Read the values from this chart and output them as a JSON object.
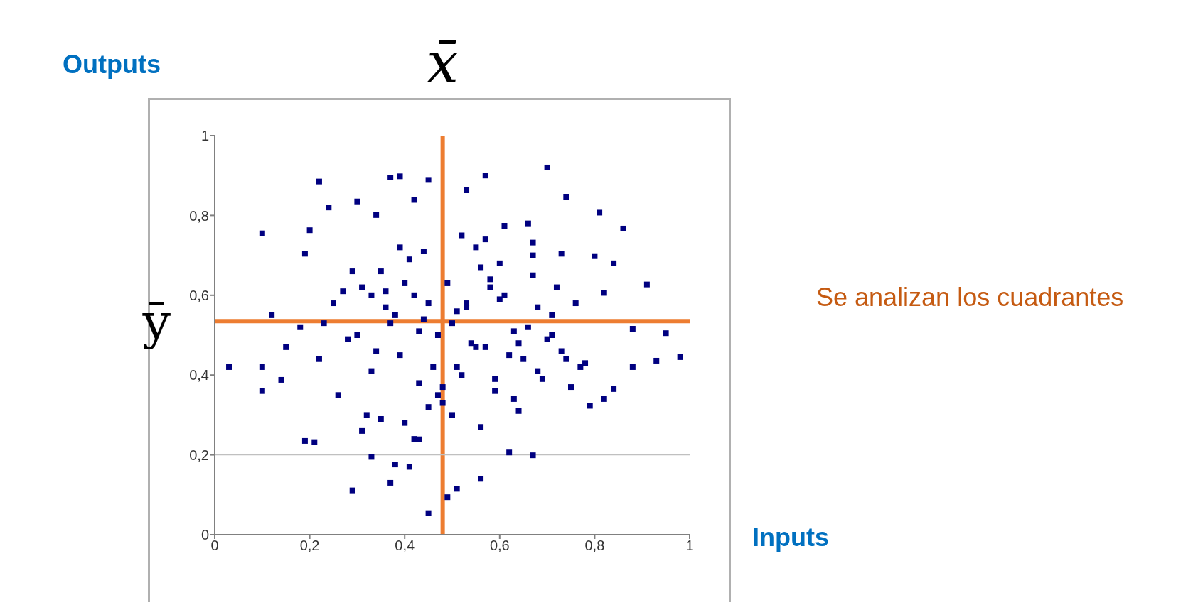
{
  "chart_data": {
    "type": "scatter",
    "xlabel": "Inputs",
    "ylabel": "Outputs",
    "annotations": [
      "Se analizan los cuadrantes"
    ],
    "xlim": [
      0,
      1
    ],
    "ylim": [
      0,
      1
    ],
    "xticks": [
      0,
      {
        "value": 0.2,
        "label": "0,2"
      },
      {
        "value": 0.4,
        "label": "0,4"
      },
      {
        "value": 0.6,
        "label": "0,6"
      },
      {
        "value": 0.8,
        "label": "0,8"
      },
      1
    ],
    "yticks": [
      0,
      {
        "value": 0.2,
        "label": "0,2"
      },
      {
        "value": 0.4,
        "label": "0,4"
      },
      {
        "value": 0.6,
        "label": "0,6"
      },
      {
        "value": 0.8,
        "label": "0,8"
      },
      1
    ],
    "grid": false,
    "marker": "square",
    "ref_lines": [
      {
        "axis": "x",
        "value": 0.48,
        "label": "x̄",
        "color": "#ed7d31"
      },
      {
        "axis": "y",
        "value": 0.535,
        "label": "ȳ",
        "color": "#ed7d31"
      },
      {
        "axis": "y",
        "value": 0.2,
        "label": null,
        "color": "#c0c0c0"
      }
    ],
    "series": [
      {
        "color": "#000080",
        "x": [
          0.1,
          0.22,
          0.37,
          0.39,
          0.45,
          0.7,
          0.57,
          0.74,
          0.53,
          0.24,
          0.3,
          0.86,
          0.91,
          0.98,
          0.95,
          0.93,
          0.88,
          0.88,
          0.03,
          0.1,
          0.1,
          0.14,
          0.19,
          0.21,
          0.29,
          0.37,
          0.45,
          0.51,
          0.49,
          0.56,
          0.62,
          0.67,
          0.33,
          0.38,
          0.41,
          0.43,
          0.82,
          0.79,
          0.84,
          0.81,
          0.73,
          0.8,
          0.84,
          0.82,
          0.19,
          0.2,
          0.34,
          0.42,
          0.61,
          0.67,
          0.12,
          0.15,
          0.18,
          0.22,
          0.25,
          0.28,
          0.31,
          0.33,
          0.35,
          0.37,
          0.39,
          0.41,
          0.43,
          0.45,
          0.47,
          0.49,
          0.51,
          0.53,
          0.55,
          0.57,
          0.59,
          0.61,
          0.63,
          0.65,
          0.67,
          0.69,
          0.71,
          0.73,
          0.76,
          0.78,
          0.26,
          0.29,
          0.32,
          0.36,
          0.4,
          0.44,
          0.48,
          0.52,
          0.56,
          0.6,
          0.64,
          0.68,
          0.72,
          0.75,
          0.3,
          0.34,
          0.38,
          0.42,
          0.46,
          0.5,
          0.54,
          0.58,
          0.62,
          0.66,
          0.7,
          0.27,
          0.35,
          0.43,
          0.51,
          0.59,
          0.67,
          0.74,
          0.31,
          0.39,
          0.47,
          0.55,
          0.63,
          0.71,
          0.36,
          0.44,
          0.52,
          0.6,
          0.68,
          0.4,
          0.48,
          0.56,
          0.64,
          0.23,
          0.77,
          0.45,
          0.53,
          0.33,
          0.58,
          0.5,
          0.42,
          0.66,
          0.57
        ],
        "values": [
          0.755,
          0.885,
          0.895,
          0.898,
          0.889,
          0.92,
          0.9,
          0.847,
          0.863,
          0.82,
          0.835,
          0.767,
          0.627,
          0.445,
          0.505,
          0.436,
          0.42,
          0.516,
          0.42,
          0.42,
          0.36,
          0.388,
          0.235,
          0.232,
          0.111,
          0.13,
          0.054,
          0.115,
          0.094,
          0.14,
          0.206,
          0.199,
          0.195,
          0.176,
          0.17,
          0.239,
          0.34,
          0.323,
          0.365,
          0.807,
          0.704,
          0.698,
          0.68,
          0.606,
          0.704,
          0.763,
          0.801,
          0.839,
          0.774,
          0.732,
          0.55,
          0.47,
          0.52,
          0.44,
          0.58,
          0.49,
          0.62,
          0.41,
          0.66,
          0.53,
          0.45,
          0.69,
          0.38,
          0.58,
          0.5,
          0.63,
          0.42,
          0.57,
          0.72,
          0.47,
          0.36,
          0.6,
          0.51,
          0.44,
          0.65,
          0.39,
          0.55,
          0.46,
          0.58,
          0.43,
          0.35,
          0.66,
          0.3,
          0.61,
          0.28,
          0.71,
          0.33,
          0.75,
          0.27,
          0.68,
          0.31,
          0.57,
          0.62,
          0.37,
          0.5,
          0.46,
          0.55,
          0.6,
          0.42,
          0.53,
          0.48,
          0.64,
          0.45,
          0.52,
          0.49,
          0.61,
          0.29,
          0.51,
          0.56,
          0.39,
          0.7,
          0.44,
          0.26,
          0.72,
          0.35,
          0.47,
          0.34,
          0.5,
          0.57,
          0.54,
          0.4,
          0.59,
          0.41,
          0.63,
          0.37,
          0.67,
          0.48,
          0.53,
          0.42,
          0.32,
          0.58,
          0.6,
          0.62,
          0.3,
          0.24,
          0.78,
          0.74
        ]
      }
    ]
  }
}
